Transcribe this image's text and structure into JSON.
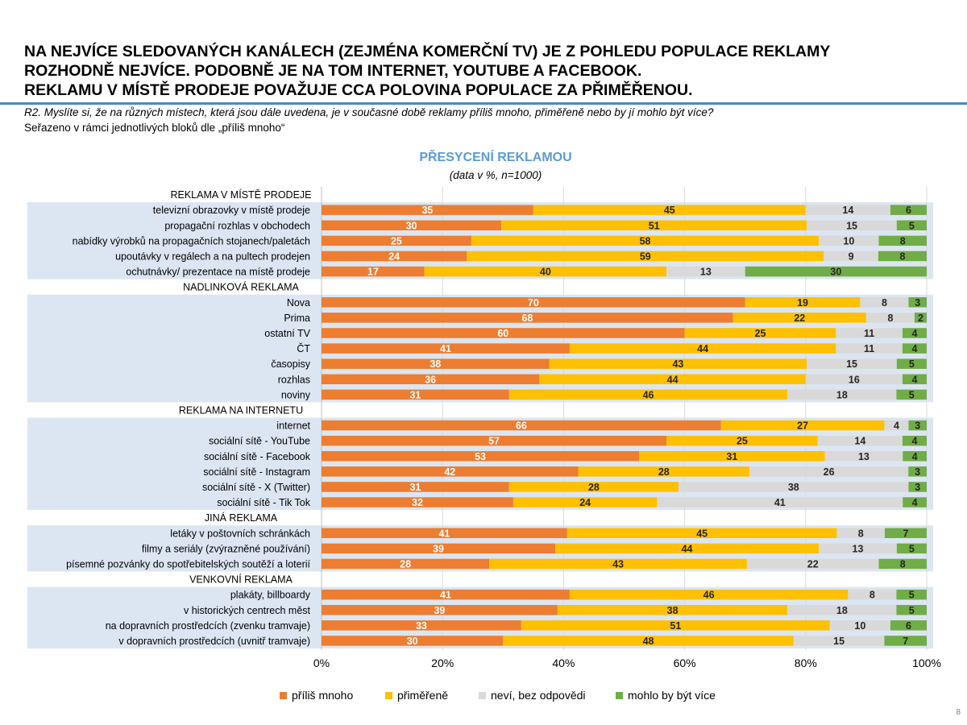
{
  "headline": {
    "line1": "NA NEJVÍCE SLEDOVANÝCH KANÁLECH (ZEJMÉNA KOMERČNÍ TV) JE Z POHLEDU POPULACE REKLAMY",
    "line2": "ROZHODNĚ NEJVÍCE. PODOBNĚ JE NA TOM INTERNET, YOUTUBE A FACEBOOK.",
    "line3": "REKLAMU V MÍSTĚ PRODEJE POVAŽUJE CCA POLOVINA POPULACE ZA PŘIMĚŘENOU."
  },
  "question": "R2. Myslíte si, že na různých místech, která jsou dále uvedena, je v současné době reklamy příliš mnoho, přiměřeně nebo by jí mohlo být více?",
  "sort_note": "Seřazeno v rámci jednotlivých bloků dle „příliš mnoho“",
  "page_number": "8",
  "chart_data": {
    "type": "bar",
    "orientation": "horizontal",
    "stacked": "percent",
    "title": "PŘESYCENÍ REKLAMOU",
    "subtitle": "(data v %, n=1000)",
    "xlim": [
      0,
      100
    ],
    "x_ticks": [
      "0%",
      "20%",
      "40%",
      "60%",
      "80%",
      "100%"
    ],
    "grid": true,
    "legend_position": "bottom",
    "series": [
      {
        "name": "příliš mnoho",
        "color": "#ed7d31"
      },
      {
        "name": "přiměřeně",
        "color": "#ffc000"
      },
      {
        "name": "neví, bez odpovědi",
        "color": "#d9d9d9"
      },
      {
        "name": "mohlo by být více",
        "color": "#70ad47"
      }
    ],
    "groups": [
      {
        "label": "REKLAMA V MÍSTĚ PRODEJE",
        "rows": [
          {
            "label": "televizní obrazovky v místě prodeje",
            "values": [
              35,
              45,
              14,
              6
            ]
          },
          {
            "label": "propagační rozhlas v obchodech",
            "values": [
              30,
              51,
              15,
              5
            ]
          },
          {
            "label": "nabídky výrobků na propagačních stojanech/paletách",
            "values": [
              25,
              58,
              10,
              8
            ]
          },
          {
            "label": "upoutávky v regálech a na pultech prodejen",
            "values": [
              24,
              59,
              9,
              8
            ]
          },
          {
            "label": "ochutnávky/ prezentace na místě prodeje",
            "values": [
              17,
              40,
              13,
              30
            ]
          }
        ]
      },
      {
        "label": "NADLINKOVÁ REKLAMA",
        "rows": [
          {
            "label": "Nova",
            "values": [
              70,
              19,
              8,
              3
            ]
          },
          {
            "label": "Prima",
            "values": [
              68,
              22,
              8,
              2
            ]
          },
          {
            "label": "ostatní TV",
            "values": [
              60,
              25,
              11,
              4
            ]
          },
          {
            "label": "ČT",
            "values": [
              41,
              44,
              11,
              4
            ]
          },
          {
            "label": "časopisy",
            "values": [
              38,
              43,
              15,
              5
            ]
          },
          {
            "label": "rozhlas",
            "values": [
              36,
              44,
              16,
              4
            ]
          },
          {
            "label": "noviny",
            "values": [
              31,
              46,
              18,
              5
            ]
          }
        ]
      },
      {
        "label": "REKLAMA NA INTERNETU",
        "rows": [
          {
            "label": "internet",
            "values": [
              66,
              27,
              4,
              3
            ]
          },
          {
            "label": "sociální sítě - YouTube",
            "values": [
              57,
              25,
              14,
              4
            ]
          },
          {
            "label": "sociální sítě - Facebook",
            "values": [
              53,
              31,
              13,
              4
            ]
          },
          {
            "label": "sociální sítě - Instagram",
            "values": [
              42,
              28,
              26,
              3
            ]
          },
          {
            "label": "sociální sítě - X (Twitter)",
            "values": [
              31,
              28,
              38,
              3
            ]
          },
          {
            "label": "sociální sítě - Tik Tok",
            "values": [
              32,
              24,
              41,
              4
            ]
          }
        ]
      },
      {
        "label": "JINÁ REKLAMA",
        "rows": [
          {
            "label": "letáky v poštovních schránkách",
            "values": [
              41,
              45,
              8,
              7
            ]
          },
          {
            "label": "filmy a seriály (zvýrazněné používání)",
            "values": [
              39,
              44,
              13,
              5
            ]
          },
          {
            "label": "písemné pozvánky do spotřebitelských soutěží a loterií",
            "values": [
              28,
              43,
              22,
              8
            ]
          }
        ]
      },
      {
        "label": "VENKOVNÍ REKLAMA",
        "rows": [
          {
            "label": "plakáty, billboardy",
            "values": [
              41,
              46,
              8,
              5
            ]
          },
          {
            "label": "v historických centrech měst",
            "values": [
              39,
              38,
              18,
              5
            ]
          },
          {
            "label": "na dopravních prostředcích (zvenku tramvaje)",
            "values": [
              33,
              51,
              10,
              6
            ]
          },
          {
            "label": "v dopravních prostředcích (uvnitř tramvaje)",
            "values": [
              30,
              48,
              15,
              7
            ]
          }
        ]
      }
    ]
  }
}
